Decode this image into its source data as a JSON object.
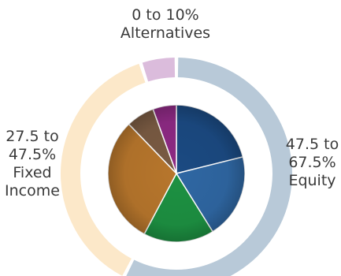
{
  "chart_data": {
    "type": "pie",
    "outer_ring": [
      {
        "label_lines": [
          "0 to 10%",
          "Alternatives"
        ],
        "range": "0 to 10%",
        "name": "Alternatives",
        "value": 5,
        "color": "#dbbcdc"
      },
      {
        "label_lines": [
          "47.5 to",
          "67.5%",
          "Equity"
        ],
        "range": "47.5 to 67.5%",
        "name": "Equity",
        "value": 57.5,
        "color": "#b8c9d8"
      },
      {
        "label_lines": [
          "27.5 to",
          "47.5%",
          "Fixed",
          "Income"
        ],
        "range": "27.5 to 47.5%",
        "name": "Fixed Income",
        "value": 37.5,
        "color": "#fce8c9"
      }
    ],
    "inner_pie": [
      {
        "value": 19,
        "color": "#1b4a82"
      },
      {
        "value": 18,
        "color": "#2f67a3"
      },
      {
        "value": 15,
        "color": "#1d9142"
      },
      {
        "value": 27,
        "color": "#b7762c"
      },
      {
        "value": 6,
        "color": "#7a5b43"
      },
      {
        "value": 5,
        "color": "#8e2a84"
      }
    ]
  }
}
